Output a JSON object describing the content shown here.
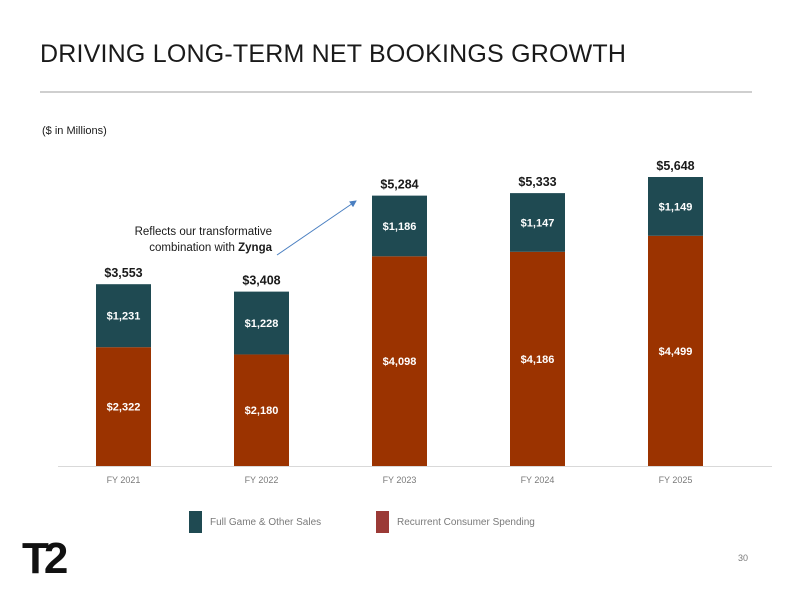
{
  "slide": {
    "title": "DRIVING LONG-TERM NET BOOKINGS GROWTH",
    "subtitle": "($ in Millions)",
    "page_number": "30",
    "logo_text": "T2",
    "annotation": {
      "line1": "Reflects our transformative",
      "line2_prefix": "combination with ",
      "line2_bold": "Zynga"
    }
  },
  "colors": {
    "full_game": "#1f4a52",
    "recurrent": "#9b3300",
    "legend_recurrent": "#9b3a36",
    "axis": "#d9d9d9",
    "arrow": "#4a7fc1"
  },
  "chart_data": {
    "type": "bar",
    "stacked": true,
    "categories": [
      "FY 2021",
      "FY 2022",
      "FY 2023",
      "FY 2024",
      "FY 2025"
    ],
    "series": [
      {
        "name": "Recurrent Consumer Spending",
        "values": [
          2322,
          2180,
          4098,
          4186,
          4499
        ],
        "labels": [
          "$2,322",
          "$2,180",
          "$4,098",
          "$4,186",
          "$4,499"
        ]
      },
      {
        "name": "Full Game & Other Sales",
        "values": [
          1231,
          1228,
          1186,
          1147,
          1149
        ],
        "labels": [
          "$1,231",
          "$1,228",
          "$1,186",
          "$1,147",
          "$1,149"
        ]
      }
    ],
    "totals": [
      3553,
      3408,
      5284,
      5333,
      5648
    ],
    "total_labels": [
      "$3,553",
      "$3,408",
      "$5,284",
      "$5,333",
      "$5,648"
    ],
    "ylim": [
      0,
      5648
    ],
    "legend": [
      "Full Game & Other Sales",
      "Recurrent Consumer Spending"
    ],
    "legend_position": "bottom",
    "grid": false
  }
}
